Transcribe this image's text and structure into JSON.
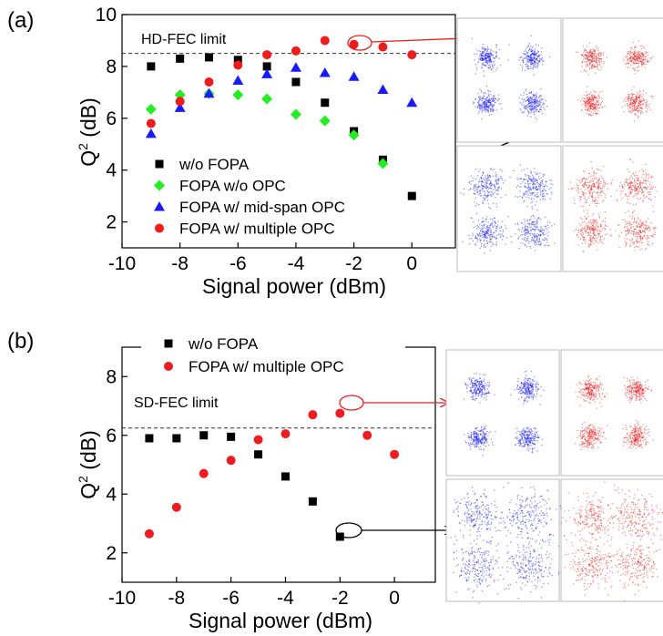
{
  "chart_data": [
    {
      "panel_label": "(a)",
      "type": "scatter",
      "xlabel": "Signal power (dBm)",
      "ylabel": "Q",
      "ylabel_sup": "2",
      "ylabel_unit": " (dB)",
      "xlim": [
        -10,
        1.5
      ],
      "ylim": [
        1,
        10
      ],
      "xticks": [
        -10,
        -8,
        -6,
        -4,
        -2,
        0
      ],
      "yticks": [
        2,
        4,
        6,
        8,
        10
      ],
      "grid": false,
      "legend_position": "bottom-left",
      "threshold": {
        "label": "HD-FEC limit",
        "y": 8.5
      },
      "series": [
        {
          "name": "w/o FOPA",
          "marker": "square",
          "color": "#000000",
          "x": [
            -9,
            -8,
            -7,
            -6,
            -5,
            -4,
            -3,
            -2,
            -1,
            0
          ],
          "y": [
            8.0,
            8.3,
            8.35,
            8.25,
            8.0,
            7.4,
            6.6,
            5.5,
            4.4,
            3.0
          ]
        },
        {
          "name": "FOPA w/o OPC",
          "marker": "diamond",
          "color": "#22ee22",
          "x": [
            -9,
            -8,
            -7,
            -6,
            -5,
            -4,
            -3,
            -2,
            -1
          ],
          "y": [
            6.35,
            6.9,
            6.95,
            6.9,
            6.75,
            6.15,
            5.9,
            5.35,
            4.25
          ]
        },
        {
          "name": "FOPA w/ mid-span OPC",
          "marker": "triangle",
          "color": "#1a1aff",
          "x": [
            -9,
            -8,
            -7,
            -6,
            -5,
            -4,
            -3,
            -2,
            -1,
            0
          ],
          "y": [
            5.4,
            6.4,
            6.95,
            7.45,
            7.7,
            7.95,
            7.75,
            7.6,
            7.1,
            6.6
          ]
        },
        {
          "name": "FOPA w/ multiple OPC",
          "marker": "circle",
          "color": "#ee1c1c",
          "x": [
            -9,
            -8,
            -7,
            -6,
            -5,
            -4,
            -3,
            -2,
            -1,
            0
          ],
          "y": [
            5.8,
            6.65,
            7.4,
            8.05,
            8.45,
            8.6,
            9.0,
            8.85,
            8.75,
            8.45
          ]
        }
      ]
    },
    {
      "panel_label": "(b)",
      "type": "scatter",
      "xlabel": "Signal power (dBm)",
      "ylabel": "Q",
      "ylabel_sup": "2",
      "ylabel_unit": " (dB)",
      "xlim": [
        -10,
        1.5
      ],
      "ylim": [
        1,
        9
      ],
      "xticks": [
        -10,
        -8,
        -6,
        -4,
        -2,
        0
      ],
      "yticks": [
        2,
        4,
        6,
        8
      ],
      "grid": false,
      "legend_position": "top",
      "threshold": {
        "label": "SD-FEC limit",
        "y": 6.25
      },
      "series": [
        {
          "name": "w/o FOPA",
          "marker": "square",
          "color": "#000000",
          "x": [
            -9,
            -8,
            -7,
            -6,
            -5,
            -4,
            -3,
            -2
          ],
          "y": [
            5.9,
            5.9,
            6.0,
            5.95,
            5.35,
            4.6,
            3.75,
            2.55
          ]
        },
        {
          "name": "FOPA w/ multiple OPC",
          "marker": "circle",
          "color": "#ee1c1c",
          "x": [
            -9,
            -8,
            -7,
            -6,
            -5,
            -4,
            -3,
            -2,
            -1,
            0
          ],
          "y": [
            2.65,
            3.55,
            4.7,
            5.15,
            5.85,
            6.05,
            6.7,
            6.75,
            6.0,
            5.35
          ]
        }
      ]
    }
  ],
  "constellations": [
    {
      "panel": "(a)",
      "row": "top",
      "colors": [
        "#1a1aff",
        "#ee1c1c"
      ],
      "spread": "tight"
    },
    {
      "panel": "(a)",
      "row": "bottom",
      "colors": [
        "#1a1aff",
        "#ee1c1c"
      ],
      "spread": "medium"
    },
    {
      "panel": "(b)",
      "row": "top",
      "colors": [
        "#1a1aff",
        "#ee1c1c"
      ],
      "spread": "tight"
    },
    {
      "panel": "(b)",
      "row": "bottom",
      "colors": [
        "#1a1aff",
        "#ee1c1c"
      ],
      "spread": "wide"
    }
  ]
}
